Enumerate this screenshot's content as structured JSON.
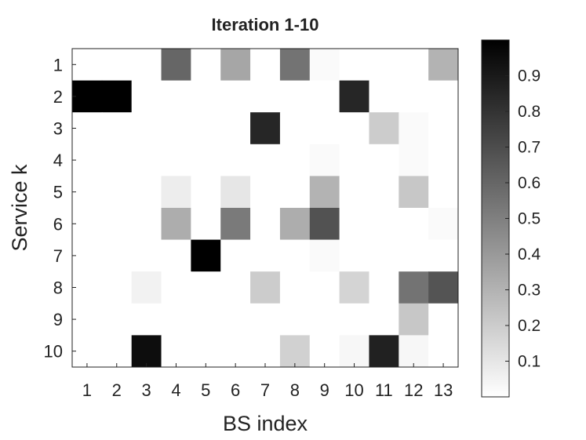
{
  "chart_data": {
    "type": "heatmap",
    "title": "Iteration 1-10",
    "xlabel": "BS index",
    "ylabel": "Service k",
    "x_categories": [
      "1",
      "2",
      "3",
      "4",
      "5",
      "6",
      "7",
      "8",
      "9",
      "10",
      "11",
      "12",
      "13"
    ],
    "y_categories": [
      "1",
      "2",
      "3",
      "4",
      "5",
      "6",
      "7",
      "8",
      "9",
      "10"
    ],
    "colormap": "gray (white = 0, black = 1)",
    "colorbar_range": [
      0,
      1
    ],
    "colorbar_ticks": [
      0.1,
      0.2,
      0.3,
      0.4,
      0.5,
      0.6,
      0.7,
      0.8,
      0.9
    ],
    "values": [
      [
        0,
        0,
        0,
        0.6,
        0,
        0.35,
        0,
        0.55,
        0.02,
        0,
        0,
        0,
        0.3
      ],
      [
        1.0,
        1.0,
        0,
        0,
        0,
        0,
        0,
        0,
        0,
        0.85,
        0,
        0,
        0
      ],
      [
        0,
        0,
        0,
        0,
        0,
        0,
        0.85,
        0,
        0,
        0,
        0.2,
        0.02,
        0
      ],
      [
        0,
        0,
        0,
        0,
        0,
        0,
        0,
        0,
        0.02,
        0,
        0,
        0.02,
        0
      ],
      [
        0,
        0,
        0,
        0.07,
        0,
        0.1,
        0,
        0,
        0.3,
        0,
        0,
        0.22,
        0
      ],
      [
        0,
        0,
        0,
        0.32,
        0,
        0.52,
        0,
        0.32,
        0.68,
        0,
        0,
        0,
        0.02
      ],
      [
        0,
        0,
        0,
        0,
        1.0,
        0,
        0,
        0,
        0.02,
        0,
        0,
        0,
        0
      ],
      [
        0,
        0,
        0.05,
        0,
        0,
        0,
        0.2,
        0,
        0,
        0.17,
        0,
        0.55,
        0.67
      ],
      [
        0,
        0,
        0,
        0,
        0,
        0,
        0,
        0,
        0,
        0,
        0,
        0.22,
        0
      ],
      [
        0,
        0,
        0.95,
        0,
        0,
        0,
        0,
        0.18,
        0,
        0.03,
        0.87,
        0.03,
        0
      ]
    ]
  }
}
